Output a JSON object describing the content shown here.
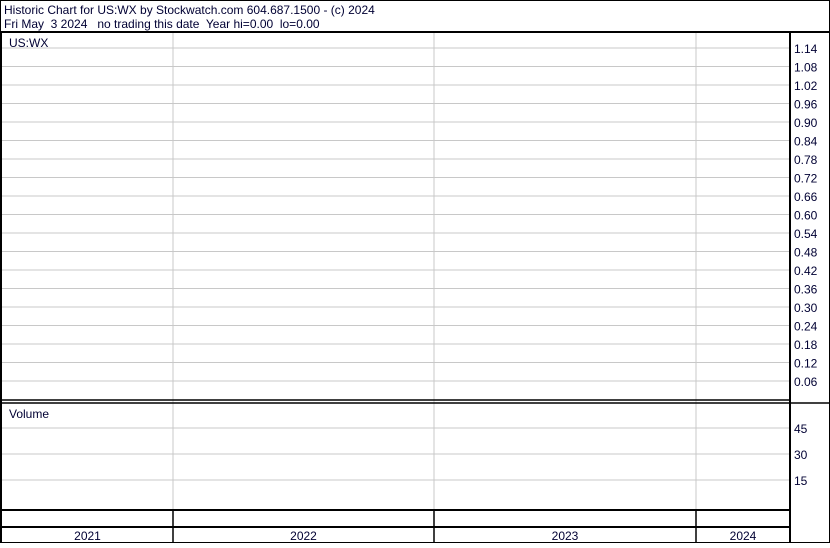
{
  "header": {
    "line1": "Historic Chart for US:WX by Stockwatch.com 604.687.1500 - (c) 2024",
    "line2": "Fri May  3 2024   no trading this date  Year hi=0.00  lo=0.00"
  },
  "chart_data": [
    {
      "type": "line",
      "title": "US:WX",
      "yticks": [
        1.14,
        1.08,
        1.02,
        0.96,
        0.9,
        0.84,
        0.78,
        0.72,
        0.66,
        0.6,
        0.54,
        0.48,
        0.42,
        0.36,
        0.3,
        0.24,
        0.18,
        0.12,
        0.06
      ],
      "ytick_labels": [
        "1.14",
        "1.08",
        "1.02",
        "0.96",
        "0.90",
        "0.84",
        "0.78",
        "0.72",
        "0.66",
        "0.60",
        "0.54",
        "0.48",
        "0.42",
        "0.36",
        "0.30",
        "0.24",
        "0.18",
        "0.12",
        "0.06"
      ],
      "x_categories": [
        "2021",
        "2022",
        "2023",
        "2024"
      ],
      "series": [],
      "grid": true
    },
    {
      "type": "bar",
      "title": "Volume",
      "yticks": [
        45,
        30,
        15
      ],
      "ytick_labels": [
        "45",
        "30",
        "15"
      ],
      "series": [],
      "grid": true
    }
  ],
  "colors": {
    "text": "#000033",
    "grid": "#c8c8c8",
    "frame": "#000000"
  }
}
